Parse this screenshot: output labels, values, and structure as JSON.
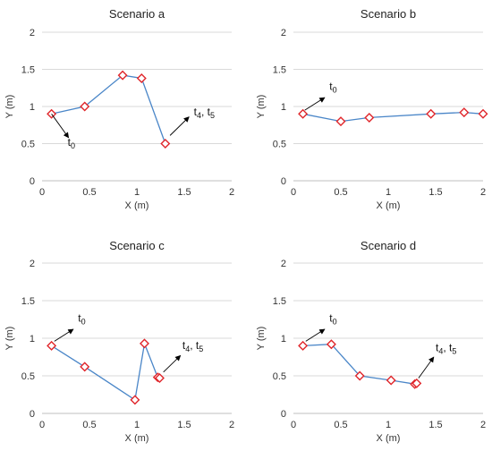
{
  "colors": {
    "line": "#4a86c8",
    "marker": "#e0262b",
    "grid": "#d9d9d9"
  },
  "chart_data": [
    {
      "type": "scatter",
      "title": "Scenario a",
      "xlabel": "X (m)",
      "ylabel": "Y (m)",
      "xlim": [
        0,
        2
      ],
      "ylim": [
        0,
        2
      ],
      "xticks": [
        "0",
        "0.5",
        "1",
        "1.5",
        "2"
      ],
      "yticks": [
        "0",
        "0.5",
        "1",
        "1.5",
        "2"
      ],
      "grid": "horizontal",
      "x": [
        0.1,
        0.45,
        0.85,
        1.05,
        1.3
      ],
      "y": [
        0.9,
        1.0,
        1.42,
        1.38,
        0.5
      ],
      "annotations": [
        {
          "base": "t",
          "sub": "0",
          "rest": "",
          "from": [
            0.1,
            0.9
          ],
          "to": [
            0.28,
            0.58
          ],
          "label_at": [
            0.27,
            0.47
          ]
        },
        {
          "base": "t",
          "sub": "4",
          "rest": ", t",
          "sub2": "5",
          "from": [
            1.35,
            0.61
          ],
          "to": [
            1.55,
            0.86
          ],
          "label_at": [
            1.6,
            0.88
          ]
        }
      ]
    },
    {
      "type": "scatter",
      "title": "Scenario b",
      "xlabel": "X (m)",
      "ylabel": "Y (m)",
      "xlim": [
        0,
        2
      ],
      "ylim": [
        0,
        2
      ],
      "xticks": [
        "0",
        "0.5",
        "1",
        "1.5",
        "2"
      ],
      "yticks": [
        "0",
        "0.5",
        "1",
        "1.5",
        "2"
      ],
      "grid": "horizontal",
      "x": [
        0.1,
        0.5,
        0.8,
        1.45,
        1.8,
        2.0
      ],
      "y": [
        0.9,
        0.8,
        0.85,
        0.9,
        0.92,
        0.9
      ],
      "annotations": [
        {
          "base": "t",
          "sub": "0",
          "rest": "",
          "from": [
            0.12,
            0.95
          ],
          "to": [
            0.33,
            1.12
          ],
          "label_at": [
            0.38,
            1.22
          ]
        }
      ]
    },
    {
      "type": "scatter",
      "title": "Scenario c",
      "xlabel": "X (m)",
      "ylabel": "Y (m)",
      "xlim": [
        0,
        2
      ],
      "ylim": [
        0,
        2
      ],
      "xticks": [
        "0",
        "0.5",
        "1",
        "1.5",
        "2"
      ],
      "yticks": [
        "0",
        "0.5",
        "1",
        "1.5",
        "2"
      ],
      "grid": "horizontal",
      "x": [
        0.1,
        0.45,
        0.98,
        1.08,
        1.22,
        1.24
      ],
      "y": [
        0.9,
        0.62,
        0.18,
        0.93,
        0.48,
        0.47
      ],
      "annotations": [
        {
          "base": "t",
          "sub": "0",
          "rest": "",
          "from": [
            0.13,
            0.96
          ],
          "to": [
            0.33,
            1.12
          ],
          "label_at": [
            0.38,
            1.22
          ]
        },
        {
          "base": "t",
          "sub": "4",
          "rest": ", t",
          "sub2": "5",
          "from": [
            1.28,
            0.55
          ],
          "to": [
            1.46,
            0.77
          ],
          "label_at": [
            1.48,
            0.86
          ]
        }
      ]
    },
    {
      "type": "scatter",
      "title": "Scenario d",
      "xlabel": "X (m)",
      "ylabel": "Y (m)",
      "xlim": [
        0,
        2
      ],
      "ylim": [
        0,
        2
      ],
      "xticks": [
        "0",
        "0.5",
        "1",
        "1.5",
        "2"
      ],
      "yticks": [
        "0",
        "0.5",
        "1",
        "1.5",
        "2"
      ],
      "grid": "horizontal",
      "x": [
        0.1,
        0.4,
        0.7,
        1.03,
        1.28,
        1.3
      ],
      "y": [
        0.9,
        0.92,
        0.5,
        0.44,
        0.39,
        0.4
      ],
      "annotations": [
        {
          "base": "t",
          "sub": "0",
          "rest": "",
          "from": [
            0.13,
            0.96
          ],
          "to": [
            0.33,
            1.12
          ],
          "label_at": [
            0.38,
            1.22
          ]
        },
        {
          "base": "t",
          "sub": "4",
          "rest": ", t",
          "sub2": "5",
          "from": [
            1.32,
            0.47
          ],
          "to": [
            1.48,
            0.75
          ],
          "label_at": [
            1.5,
            0.83
          ]
        }
      ]
    }
  ]
}
